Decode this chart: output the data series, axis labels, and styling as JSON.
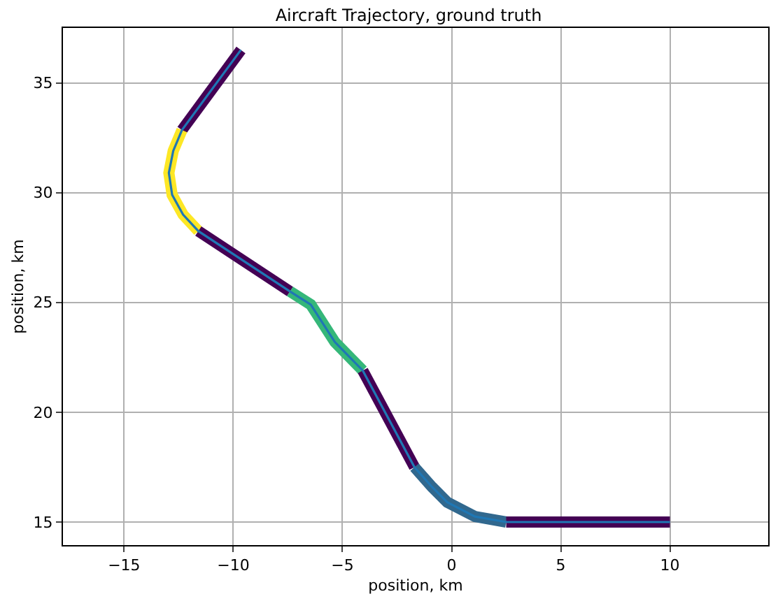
{
  "chart_data": {
    "type": "line",
    "title": "Aircraft Trajectory, ground truth",
    "xlabel": "position, km",
    "ylabel": "position, km",
    "xlim": [
      -17.8,
      14.5
    ],
    "ylim": [
      13.95,
      37.5
    ],
    "xticks": [
      -15,
      -10,
      -5,
      0,
      5,
      10
    ],
    "yticks": [
      15,
      20,
      25,
      30,
      35
    ],
    "grid": true,
    "marker": "none",
    "series": [
      {
        "color": "#440154",
        "x": [
          -9.65,
          -12.35
        ],
        "values": [
          36.5,
          32.85
        ]
      },
      {
        "color": "#fde725",
        "x": [
          -12.35,
          -12.75,
          -12.95,
          -12.8,
          -12.3,
          -11.6
        ],
        "values": [
          32.85,
          31.9,
          30.9,
          29.9,
          29.0,
          28.25
        ]
      },
      {
        "color": "#440154",
        "x": [
          -11.6,
          -7.4
        ],
        "values": [
          28.25,
          25.5
        ]
      },
      {
        "color": "#35b779",
        "x": [
          -7.4,
          -6.45,
          -5.35,
          -4.07
        ],
        "values": [
          25.5,
          24.9,
          23.2,
          21.9
        ]
      },
      {
        "color": "#440154",
        "x": [
          -4.07,
          -1.7
        ],
        "values": [
          21.9,
          17.5
        ]
      },
      {
        "color": "#31688e",
        "x": [
          -1.7,
          -0.9,
          -0.2,
          1.07,
          2.5
        ],
        "values": [
          17.5,
          16.6,
          15.9,
          15.25,
          15.0
        ]
      },
      {
        "color": "#440154",
        "x": [
          2.5,
          10
        ],
        "values": [
          15.0,
          15.0
        ]
      },
      {
        "color": "#1f77b4",
        "x": [
          -9.65,
          -12.35,
          -12.75,
          -12.95,
          -12.8,
          -12.3,
          -11.6,
          -7.4,
          -6.45,
          -5.35,
          -4.07,
          -1.7,
          -0.9,
          -0.2,
          1.07,
          2.5,
          10
        ],
        "values": [
          36.5,
          32.85,
          31.9,
          30.9,
          29.9,
          29.0,
          28.25,
          25.5,
          24.9,
          23.2,
          21.9,
          17.5,
          16.6,
          15.9,
          15.25,
          15.0,
          15.0
        ]
      }
    ]
  }
}
